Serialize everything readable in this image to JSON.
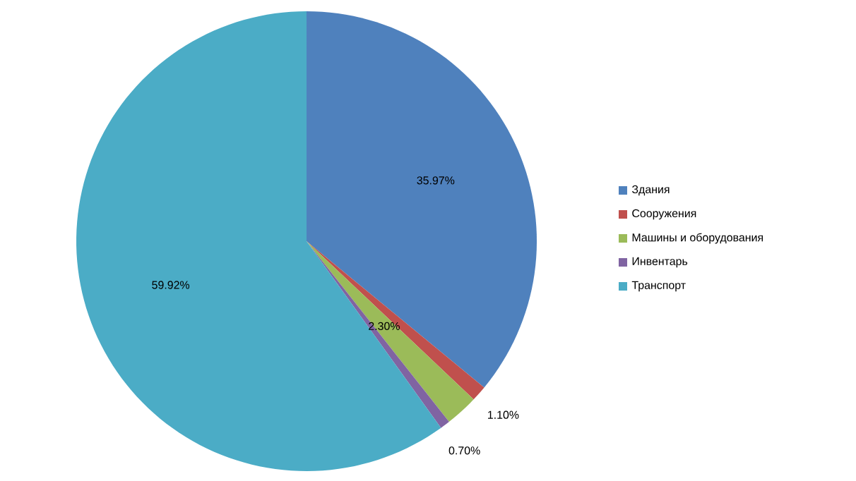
{
  "chart_data": {
    "type": "pie",
    "categories": [
      "Здания",
      "Сооружения",
      "Машины и оборудования",
      "Инвентарь",
      "Транспорт"
    ],
    "values": [
      35.97,
      1.1,
      2.3,
      0.7,
      59.92
    ],
    "value_labels": [
      "35.97%",
      "1.10%",
      "2.30%",
      "0.70%",
      "59.92%"
    ],
    "colors": [
      "#4f81bd",
      "#c0504d",
      "#9bbb59",
      "#8064a2",
      "#4bacc6"
    ],
    "legend": "right"
  }
}
